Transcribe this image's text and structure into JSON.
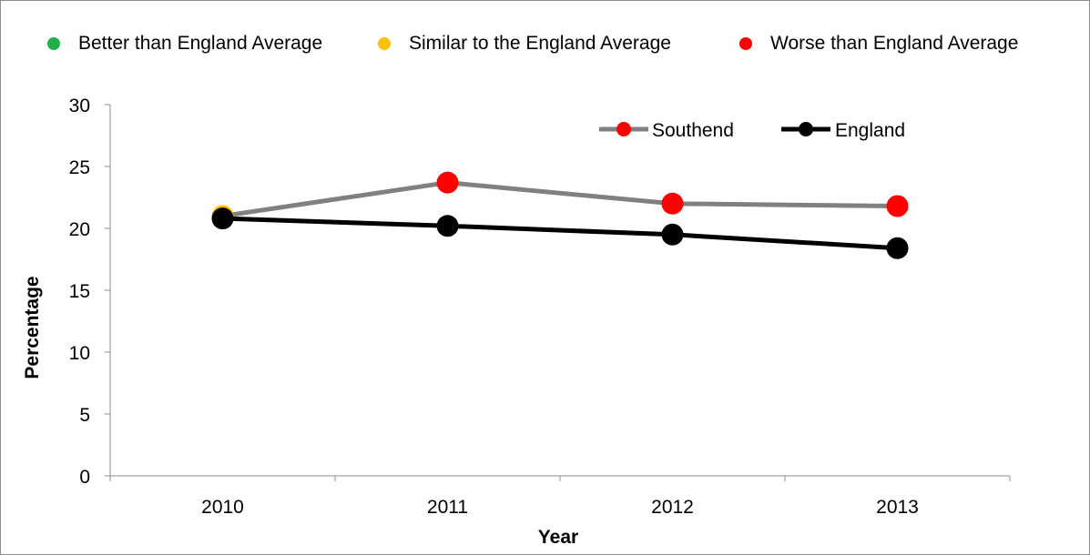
{
  "status_legend": [
    {
      "label": "Better than England Average",
      "color": "#1fb04a"
    },
    {
      "label": "Similar to the England Average",
      "color": "#ffc000"
    },
    {
      "label": "Worse than England Average",
      "color": "#ff0000"
    }
  ],
  "chart_data": {
    "type": "line",
    "title": "",
    "xlabel": "Year",
    "ylabel": "Percentage",
    "categories": [
      "2010",
      "2011",
      "2012",
      "2013"
    ],
    "ylim": [
      0,
      30
    ],
    "yticks": [
      0,
      5,
      10,
      15,
      20,
      25,
      30
    ],
    "grid": false,
    "legend_position": "top-right",
    "series": [
      {
        "name": "Southend",
        "values": [
          21.0,
          23.7,
          22.0,
          21.8
        ],
        "line_color": "#808080",
        "marker_colors": [
          "#ffc000",
          "#ff0000",
          "#ff0000",
          "#ff0000"
        ],
        "legend_marker_color": "#ff0000"
      },
      {
        "name": "England",
        "values": [
          20.8,
          20.2,
          19.5,
          18.4
        ],
        "line_color": "#000000",
        "marker_colors": [
          "#000000",
          "#000000",
          "#000000",
          "#000000"
        ],
        "legend_marker_color": "#000000"
      }
    ]
  }
}
